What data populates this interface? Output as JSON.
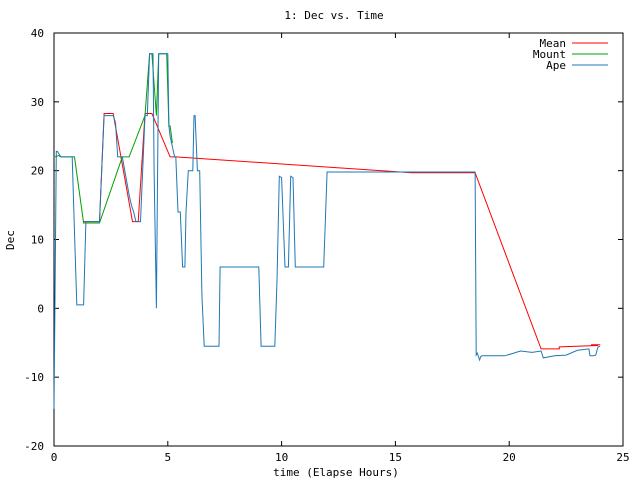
{
  "chart_data": {
    "type": "line",
    "title": "1: Dec vs. Time",
    "xlabel": "time (Elapse Hours)",
    "ylabel": "Dec",
    "xlim": [
      0,
      25
    ],
    "ylim": [
      -20,
      40
    ],
    "x_ticks": [
      0,
      5,
      10,
      15,
      20,
      25
    ],
    "y_ticks": [
      -20,
      -10,
      0,
      10,
      20,
      30,
      40
    ],
    "grid": false,
    "legend_position": "top-right",
    "series": [
      {
        "name": "Mean",
        "color": "#ff0000",
        "x": [
          1.3,
          2.0,
          2.2,
          2.6,
          3.45,
          3.7,
          4.0,
          4.3,
          5.1,
          5.35,
          15.7,
          18.5,
          21.4,
          22.2,
          22.2,
          23.9,
          23.6,
          24.0
        ],
        "y": [
          12.6,
          12.6,
          28.3,
          28.3,
          12.6,
          12.6,
          28.3,
          28.3,
          22.0,
          22.0,
          19.7,
          19.7,
          -5.9,
          -5.9,
          -5.6,
          -5.4,
          -5.3,
          -5.3
        ]
      },
      {
        "name": "Mount",
        "color": "#00a000",
        "x": [
          0.05,
          0.2,
          0.3,
          0.5,
          0.9,
          1.3,
          2.0,
          3.0,
          3.1,
          3.3,
          4.0,
          4.2,
          4.3,
          4.5,
          4.6,
          4.7,
          4.95,
          5.05,
          5.1,
          5.2
        ],
        "y": [
          22.0,
          22.2,
          22.0,
          22.0,
          22.0,
          12.4,
          12.4,
          22.0,
          22.0,
          22.0,
          28.0,
          37.0,
          37.0,
          28.0,
          37.0,
          37.0,
          37.0,
          26.5,
          26.5,
          24.0
        ]
      },
      {
        "name": "Ape",
        "color": "#1f77b4",
        "x": [
          0.0,
          0.05,
          0.1,
          0.15,
          0.3,
          0.5,
          0.8,
          0.9,
          1.0,
          1.3,
          1.4,
          2.0,
          2.2,
          2.6,
          2.7,
          2.8,
          2.9,
          3.0,
          3.3,
          3.4,
          3.5,
          3.6,
          3.75,
          3.8,
          4.0,
          4.1,
          4.2,
          4.35,
          4.4,
          4.5,
          4.55,
          4.6,
          4.65,
          4.8,
          5.0,
          5.05,
          5.1,
          5.3,
          5.35,
          5.45,
          5.55,
          5.65,
          5.75,
          5.8,
          5.9,
          6.1,
          6.15,
          6.2,
          6.3,
          6.4,
          6.5,
          6.6,
          6.65,
          6.8,
          7.0,
          7.25,
          7.3,
          7.5,
          7.7,
          8.0,
          9.0,
          9.1,
          9.5,
          9.7,
          9.8,
          9.9,
          10.0,
          10.15,
          10.3,
          10.4,
          10.5,
          10.6,
          10.8,
          10.95,
          11.5,
          11.85,
          12.0,
          13.0,
          15.0,
          17.0,
          18.5,
          18.55,
          18.6,
          18.7,
          18.75,
          18.8,
          19.5,
          19.8,
          20.2,
          20.3,
          20.5,
          21.0,
          21.4,
          21.5,
          22.0,
          22.5,
          23.0,
          23.5,
          23.55,
          23.7,
          23.8,
          23.9,
          24.0
        ],
        "y": [
          -14.6,
          3.0,
          22.8,
          22.8,
          22.0,
          22.0,
          22.0,
          11.0,
          0.5,
          0.5,
          12.6,
          12.6,
          28.0,
          28.0,
          27.0,
          22.0,
          22.0,
          22.0,
          16.5,
          15.0,
          14.0,
          12.6,
          12.6,
          12.6,
          28.0,
          28.0,
          37.0,
          37.0,
          20.0,
          0.0,
          20.0,
          37.0,
          37.0,
          37.0,
          37.0,
          26.5,
          25.0,
          22.0,
          22.0,
          14.0,
          14.0,
          6.0,
          6.0,
          14.0,
          20.0,
          20.0,
          28.0,
          28.0,
          20.0,
          20.0,
          2.0,
          -5.5,
          -5.5,
          -5.5,
          -5.5,
          -5.5,
          6.0,
          6.0,
          6.0,
          6.0,
          6.0,
          -5.5,
          -5.5,
          -5.5,
          4.0,
          19.2,
          19.0,
          6.0,
          6.0,
          19.2,
          19.0,
          6.0,
          6.0,
          6.0,
          6.0,
          6.0,
          19.8,
          19.8,
          19.8,
          19.8,
          19.8,
          -6.8,
          -6.5,
          -7.5,
          -7.0,
          -6.9,
          -6.9,
          -6.9,
          -6.5,
          -6.4,
          -6.2,
          -6.4,
          -6.2,
          -7.2,
          -6.9,
          -6.8,
          -6.1,
          -5.9,
          -6.9,
          -6.9,
          -6.8,
          -5.6,
          -5.5
        ],
        "note_hidden": ""
      }
    ]
  }
}
